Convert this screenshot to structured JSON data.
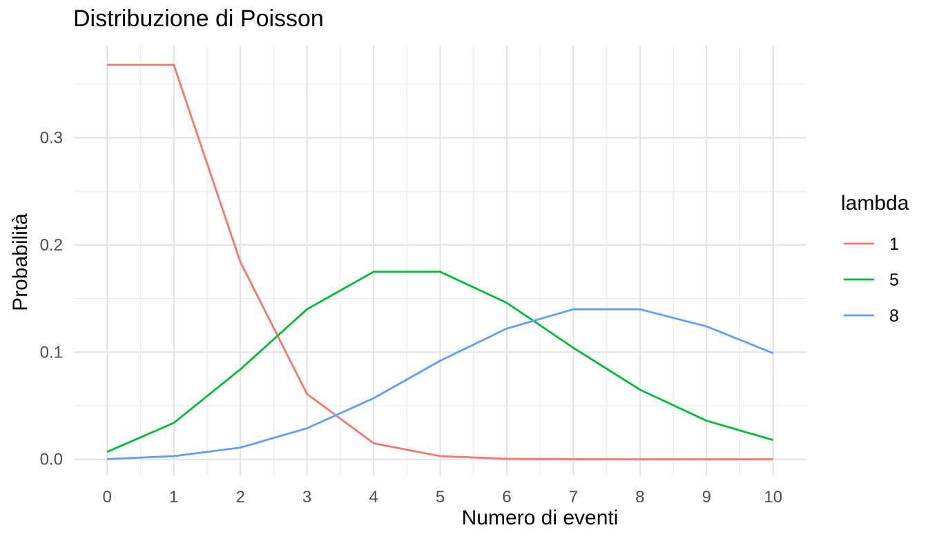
{
  "chart_data": {
    "type": "line",
    "title": "Distribuzione di Poisson",
    "xlabel": "Numero di eventi",
    "ylabel": "Probabilità",
    "x": [
      0,
      1,
      2,
      3,
      4,
      5,
      6,
      7,
      8,
      9,
      10
    ],
    "x_ticks": [
      "0",
      "1",
      "2",
      "3",
      "4",
      "5",
      "6",
      "7",
      "8",
      "9",
      "10"
    ],
    "y_ticks": [
      {
        "value": 0.0,
        "label": "0.0"
      },
      {
        "value": 0.1,
        "label": "0.1"
      },
      {
        "value": 0.2,
        "label": "0.2"
      },
      {
        "value": 0.3,
        "label": "0.3"
      }
    ],
    "xlim": [
      -0.5,
      10.5
    ],
    "ylim": [
      -0.015,
      0.386
    ],
    "grid": true,
    "legend": {
      "title": "lambda",
      "placement": "right"
    },
    "series": [
      {
        "name": "1",
        "color": "#F8766D",
        "values": [
          0.368,
          0.368,
          0.184,
          0.061,
          0.015,
          0.003,
          0.0005,
          0.0001,
          0.0,
          0.0,
          0.0
        ]
      },
      {
        "name": "5",
        "color": "#00BA38",
        "values": [
          0.007,
          0.034,
          0.084,
          0.14,
          0.175,
          0.175,
          0.146,
          0.104,
          0.065,
          0.036,
          0.018
        ]
      },
      {
        "name": "8",
        "color": "#619CFF",
        "values": [
          0.0003,
          0.003,
          0.011,
          0.029,
          0.057,
          0.092,
          0.122,
          0.14,
          0.14,
          0.124,
          0.099
        ]
      }
    ]
  }
}
